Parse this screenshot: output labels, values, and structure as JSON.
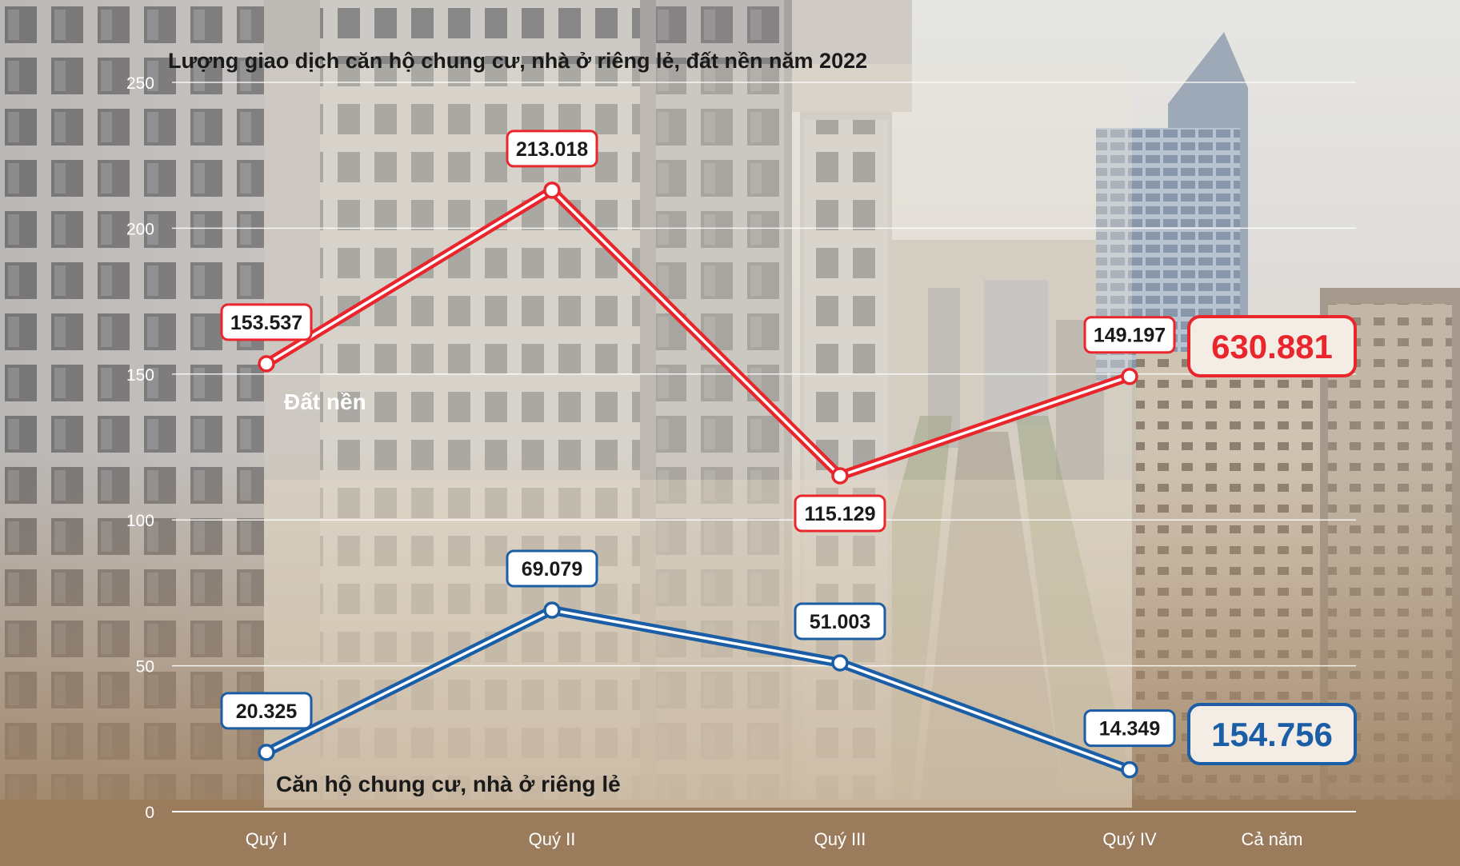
{
  "chart_data": {
    "type": "line",
    "title": "Lượng giao dịch căn hộ chung cư, nhà ở riêng lẻ, đất nền năm 2022",
    "categories": [
      "Quý I",
      "Quý II",
      "Quý III",
      "Quý IV"
    ],
    "extra_category": "Cả năm",
    "ylim": [
      0,
      250
    ],
    "yticks": [
      0,
      50,
      100,
      150,
      200,
      250
    ],
    "grid": true,
    "series": [
      {
        "name": "Đất nền",
        "color": "#e8262c",
        "values": [
          153.537,
          213.018,
          115.129,
          149.197
        ],
        "labels": [
          "153.537",
          "213.018",
          "115.129",
          "149.197"
        ],
        "label_positions": [
          "above",
          "above",
          "below",
          "above"
        ],
        "total_label": "630.881"
      },
      {
        "name": "Căn hộ chung cư, nhà ở riêng lẻ",
        "color": "#1b5ea6",
        "values": [
          20.325,
          69.079,
          51.003,
          14.349
        ],
        "labels": [
          "20.325",
          "69.079",
          "51.003",
          "14.349"
        ],
        "label_positions": [
          "above",
          "above",
          "above",
          "above"
        ],
        "total_label": "154.756"
      }
    ]
  }
}
